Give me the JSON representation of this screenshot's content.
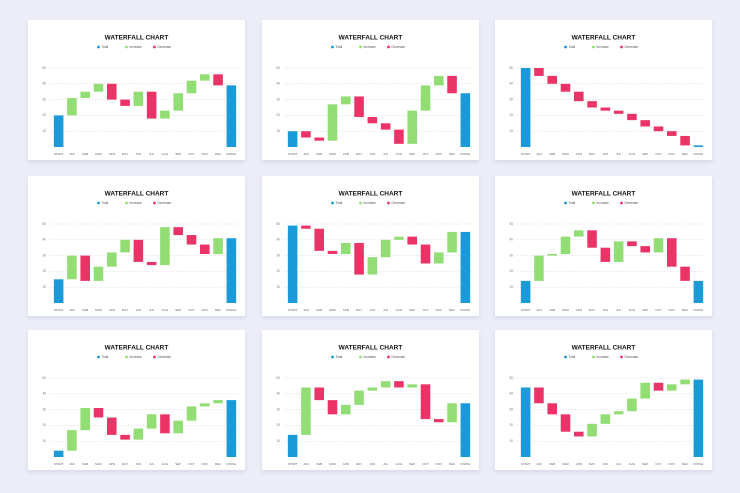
{
  "chart_data": [
    {
      "type": "waterfall",
      "title": "WATERFALL CHART",
      "legend": [
        {
          "name": "Total",
          "color": "#1a9ad8"
        },
        {
          "name": "Increase",
          "color": "#92dd74"
        },
        {
          "name": "Decrease",
          "color": "#ea3467"
        }
      ],
      "categories": [
        "START",
        "JAN",
        "FEB",
        "MAR",
        "APR",
        "MAY",
        "JUN",
        "JUL",
        "AUG",
        "SEP",
        "OCT",
        "NOV",
        "DEC",
        "FINISH"
      ],
      "values": [
        20,
        11,
        4,
        5,
        -10,
        -4,
        9,
        -17,
        5,
        11,
        8,
        4,
        -7,
        39
      ],
      "ylim": [
        0,
        50
      ],
      "yticks": [
        10,
        20,
        30,
        40,
        50
      ],
      "grid": true
    },
    {
      "type": "waterfall",
      "title": "WATERFALL CHART",
      "legend": [
        {
          "name": "Total",
          "color": "#1a9ad8"
        },
        {
          "name": "Increase",
          "color": "#92dd74"
        },
        {
          "name": "Decrease",
          "color": "#ea3467"
        }
      ],
      "categories": [
        "START",
        "JAN",
        "FEB",
        "MAR",
        "APR",
        "MAY",
        "JUN",
        "JUL",
        "AUG",
        "SEP",
        "OCT",
        "NOV",
        "DEC",
        "FINISH"
      ],
      "values": [
        10,
        -4,
        -2,
        23,
        5,
        -13,
        -4,
        -4,
        -9,
        21,
        16,
        6,
        -11,
        34
      ],
      "ylim": [
        0,
        50
      ],
      "yticks": [
        10,
        20,
        30,
        40,
        50
      ],
      "grid": true
    },
    {
      "type": "waterfall",
      "title": "WATERFALL CHART",
      "legend": [
        {
          "name": "Total",
          "color": "#1a9ad8"
        },
        {
          "name": "Increase",
          "color": "#92dd74"
        },
        {
          "name": "Decrease",
          "color": "#ea3467"
        }
      ],
      "categories": [
        "START",
        "JAN",
        "FEB",
        "MAR",
        "APR",
        "MAY",
        "JUN",
        "JUL",
        "AUG",
        "SEP",
        "OCT",
        "NOV",
        "DEC",
        "FINISH"
      ],
      "values": [
        50,
        -5,
        -5,
        -5,
        -6,
        -4,
        -2,
        -2,
        -4,
        -4,
        -3,
        -3,
        -6,
        1
      ],
      "ylim": [
        0,
        50
      ],
      "yticks": [
        10,
        20,
        30,
        40,
        50
      ],
      "grid": true
    },
    {
      "type": "waterfall",
      "title": "WATERFALL CHART",
      "legend": [
        {
          "name": "Total",
          "color": "#1a9ad8"
        },
        {
          "name": "Increase",
          "color": "#92dd74"
        },
        {
          "name": "Decrease",
          "color": "#ea3467"
        }
      ],
      "categories": [
        "START",
        "JAN",
        "FEB",
        "MAR",
        "APR",
        "MAY",
        "JUN",
        "JUL",
        "AUG",
        "SEP",
        "OCT",
        "NOV",
        "DEC",
        "FINISH"
      ],
      "values": [
        15,
        15,
        -16,
        9,
        9,
        8,
        -14,
        -2,
        24,
        -5,
        -6,
        -6,
        10,
        41
      ],
      "ylim": [
        0,
        50
      ],
      "yticks": [
        10,
        20,
        30,
        40,
        50
      ],
      "grid": true
    },
    {
      "type": "waterfall",
      "title": "WATERFALL CHART",
      "legend": [
        {
          "name": "Total",
          "color": "#1a9ad8"
        },
        {
          "name": "Increase",
          "color": "#92dd74"
        },
        {
          "name": "Decrease",
          "color": "#ea3467"
        }
      ],
      "categories": [
        "START",
        "JAN",
        "FEB",
        "MAR",
        "APR",
        "MAY",
        "JUN",
        "JUL",
        "AUG",
        "SEP",
        "OCT",
        "NOV",
        "DEC",
        "FINISH"
      ],
      "values": [
        49,
        -2,
        -14,
        -2,
        7,
        -20,
        11,
        11,
        2,
        -5,
        -12,
        7,
        13,
        45
      ],
      "ylim": [
        0,
        50
      ],
      "yticks": [
        10,
        20,
        30,
        40,
        50
      ],
      "grid": true
    },
    {
      "type": "waterfall",
      "title": "WATERFALL CHART",
      "legend": [
        {
          "name": "Total",
          "color": "#1a9ad8"
        },
        {
          "name": "Increase",
          "color": "#92dd74"
        },
        {
          "name": "Decrease",
          "color": "#ea3467"
        }
      ],
      "categories": [
        "START",
        "JAN",
        "FEB",
        "MAR",
        "APR",
        "MAY",
        "JUN",
        "JUL",
        "AUG",
        "SEP",
        "OCT",
        "NOV",
        "DEC",
        "FINISH"
      ],
      "values": [
        14,
        16,
        1,
        11,
        4,
        -11,
        -9,
        13,
        -3,
        -4,
        9,
        -18,
        -9,
        14
      ],
      "ylim": [
        0,
        50
      ],
      "yticks": [
        10,
        20,
        30,
        40,
        50
      ],
      "grid": true
    },
    {
      "type": "waterfall",
      "title": "WATERFALL CHART",
      "legend": [
        {
          "name": "Total",
          "color": "#1a9ad8"
        },
        {
          "name": "Increase",
          "color": "#92dd74"
        },
        {
          "name": "Decrease",
          "color": "#ea3467"
        }
      ],
      "categories": [
        "START",
        "JAN",
        "FEB",
        "MAR",
        "APR",
        "MAY",
        "JUN",
        "JUL",
        "AUG",
        "SEP",
        "OCT",
        "NOV",
        "DEC",
        "FINISH"
      ],
      "values": [
        4,
        13,
        14,
        -6,
        -11,
        -3,
        7,
        9,
        -12,
        8,
        9,
        2,
        2,
        36
      ],
      "ylim": [
        0,
        50
      ],
      "yticks": [
        10,
        20,
        30,
        40,
        50
      ],
      "grid": true
    },
    {
      "type": "waterfall",
      "title": "WATERFALL CHART",
      "legend": [
        {
          "name": "Total",
          "color": "#1a9ad8"
        },
        {
          "name": "Increase",
          "color": "#92dd74"
        },
        {
          "name": "Decrease",
          "color": "#ea3467"
        }
      ],
      "categories": [
        "START",
        "JAN",
        "FEB",
        "MAR",
        "APR",
        "MAY",
        "JUN",
        "JUL",
        "AUG",
        "SEP",
        "OCT",
        "NOV",
        "DEC",
        "FINISH"
      ],
      "values": [
        14,
        30,
        -8,
        -9,
        6,
        9,
        2,
        4,
        -4,
        2,
        -22,
        -2,
        12,
        34
      ],
      "ylim": [
        0,
        50
      ],
      "yticks": [
        10,
        20,
        30,
        40,
        50
      ],
      "grid": true
    },
    {
      "type": "waterfall",
      "title": "WATERFALL CHART",
      "legend": [
        {
          "name": "Total",
          "color": "#1a9ad8"
        },
        {
          "name": "Increase",
          "color": "#92dd74"
        },
        {
          "name": "Decrease",
          "color": "#ea3467"
        }
      ],
      "categories": [
        "START",
        "JAN",
        "FEB",
        "MAR",
        "APR",
        "MAY",
        "JUN",
        "JUL",
        "AUG",
        "SEP",
        "OCT",
        "NOV",
        "DEC",
        "FINISH"
      ],
      "values": [
        44,
        -10,
        -7,
        -11,
        -3,
        8,
        6,
        2,
        8,
        10,
        -5,
        4,
        3,
        49
      ],
      "ylim": [
        0,
        50
      ],
      "yticks": [
        10,
        20,
        30,
        40,
        50
      ],
      "grid": true
    }
  ]
}
